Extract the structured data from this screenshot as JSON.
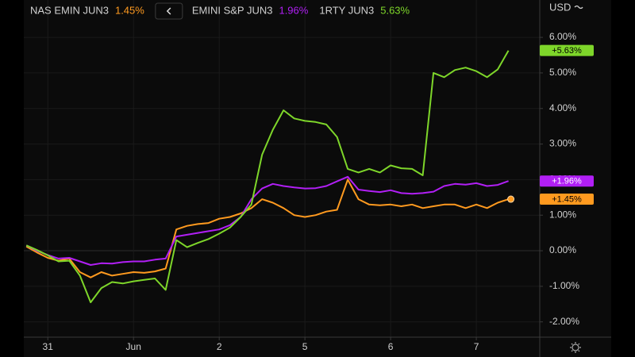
{
  "chart_data": {
    "type": "line",
    "currency": "USD",
    "x": [
      -0.25,
      -0.125,
      0,
      0.125,
      0.25,
      0.375,
      0.5,
      0.625,
      0.75,
      0.875,
      1,
      1.125,
      1.25,
      1.375,
      1.5,
      1.625,
      1.75,
      1.875,
      2,
      2.125,
      2.25,
      2.375,
      2.5,
      2.625,
      2.75,
      2.875,
      3,
      3.125,
      3.25,
      3.375,
      3.5,
      3.625,
      3.75,
      3.875,
      4,
      4.125,
      4.25,
      4.375,
      4.5,
      4.625,
      4.75,
      4.875,
      5,
      5.125,
      5.25,
      5.375
    ],
    "xlim": [
      -0.28,
      5.74
    ],
    "xticks": [
      {
        "value": 0,
        "label": "31"
      },
      {
        "value": 1,
        "label": "Jun"
      },
      2,
      {
        "value": 3,
        "label": "5"
      },
      {
        "value": 4,
        "label": "6"
      },
      {
        "value": 5,
        "label": "7"
      }
    ],
    "ylim": [
      -2.43,
      7.05
    ],
    "yticks": [
      {
        "value": 6,
        "label": "6.00%"
      },
      {
        "value": 5,
        "label": "5.00%"
      },
      {
        "value": 4,
        "label": "4.00%"
      },
      {
        "value": 3,
        "label": "3.00%"
      },
      {
        "value": 2,
        "label": "2.00%"
      },
      {
        "value": 1,
        "label": "1.00%"
      },
      {
        "value": 0,
        "label": "0.00%"
      },
      {
        "value": -1,
        "label": "-1.00%"
      },
      {
        "value": -2,
        "label": "-2.00%"
      }
    ],
    "grid": true,
    "series": [
      {
        "name": "NAS EMIN JUN3",
        "color": "#ff9a1f",
        "badge_text_color": "#000000",
        "legend_value": {
          "value": 1.45,
          "label": "1.45%"
        },
        "badge": {
          "value": 1.45,
          "label": "+1.45%"
        },
        "values": [
          0.12,
          -0.05,
          -0.2,
          -0.28,
          -0.22,
          -0.6,
          -0.75,
          -0.6,
          -0.7,
          -0.65,
          -0.6,
          -0.62,
          -0.58,
          -0.5,
          0.6,
          0.7,
          0.75,
          0.78,
          0.9,
          0.95,
          1.05,
          1.2,
          1.45,
          1.35,
          1.2,
          1.0,
          0.95,
          1.0,
          1.1,
          1.15,
          2.0,
          1.45,
          1.3,
          1.28,
          1.3,
          1.25,
          1.3,
          1.2,
          1.25,
          1.3,
          1.3,
          1.2,
          1.3,
          1.2,
          1.35,
          1.45
        ]
      },
      {
        "name": "EMINI S&P JUN3",
        "color": "#b11ff5",
        "badge_text_color": "#ffffff",
        "legend_value": {
          "value": 1.96,
          "label": "1.96%"
        },
        "badge": {
          "value": 1.96,
          "label": "+1.96%"
        },
        "values": [
          0.15,
          0.0,
          -0.12,
          -0.22,
          -0.2,
          -0.3,
          -0.4,
          -0.35,
          -0.36,
          -0.32,
          -0.3,
          -0.3,
          -0.25,
          -0.22,
          0.4,
          0.45,
          0.5,
          0.55,
          0.6,
          0.72,
          0.95,
          1.45,
          1.75,
          1.88,
          1.82,
          1.78,
          1.75,
          1.76,
          1.82,
          1.95,
          2.08,
          1.72,
          1.68,
          1.65,
          1.7,
          1.62,
          1.6,
          1.62,
          1.66,
          1.82,
          1.88,
          1.86,
          1.9,
          1.82,
          1.85,
          1.96
        ]
      },
      {
        "name": "1RTY JUN3",
        "color": "#7ed62a",
        "badge_text_color": "#000000",
        "legend_value": {
          "value": 5.63,
          "label": "5.63%"
        },
        "badge": {
          "value": 5.63,
          "label": "+5.63%"
        },
        "values": [
          0.15,
          0.02,
          -0.13,
          -0.3,
          -0.28,
          -0.7,
          -1.45,
          -1.05,
          -0.88,
          -0.92,
          -0.86,
          -0.82,
          -0.78,
          -1.1,
          0.3,
          0.1,
          0.22,
          0.33,
          0.48,
          0.65,
          0.95,
          1.3,
          2.7,
          3.4,
          3.95,
          3.72,
          3.65,
          3.62,
          3.55,
          3.2,
          2.3,
          2.2,
          2.3,
          2.2,
          2.4,
          2.32,
          2.3,
          2.12,
          5.0,
          4.88,
          5.08,
          5.15,
          5.05,
          4.88,
          5.1,
          5.63
        ]
      }
    ]
  }
}
